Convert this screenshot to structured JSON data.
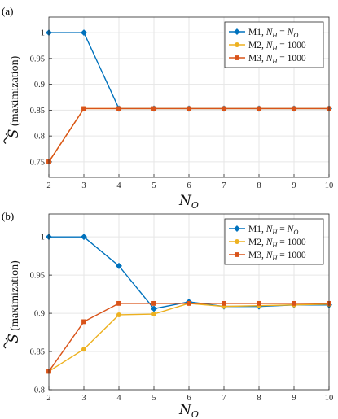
{
  "colors": {
    "M1": "#0072bd",
    "M2": "#edb120",
    "M3": "#d95319"
  },
  "chart_data": [
    {
      "type": "line",
      "panel_label": "(a)",
      "xlabel_base": "N",
      "xlabel_sub": "O",
      "ylabel_symbol": "S",
      "ylabel_text": "(maximization)",
      "x": [
        2,
        3,
        4,
        5,
        6,
        7,
        8,
        9,
        10
      ],
      "xlim": [
        2,
        10
      ],
      "ylim": [
        0.72,
        1.03
      ],
      "yticks": [
        0.75,
        0.8,
        0.85,
        0.9,
        0.95,
        1
      ],
      "ytick_labels": [
        "0.75",
        "0.8",
        "0.85",
        "0.9",
        "0.95",
        "1"
      ],
      "grid": true,
      "legend": "top-right",
      "series": [
        {
          "name": "M1, N_H = N_O",
          "legend_label": "M1, ",
          "legend_math": "N_H = N_O",
          "color_key": "M1",
          "marker": "diamond",
          "values": [
            1.0,
            1.0,
            0.853,
            0.853,
            0.853,
            0.853,
            0.853,
            0.853,
            0.853
          ]
        },
        {
          "name": "M2, N_H = 1000",
          "legend_label": "M2, ",
          "legend_math": "N_H = 1000",
          "color_key": "M2",
          "marker": "circle",
          "values": [
            0.75,
            0.853,
            0.853,
            0.853,
            0.853,
            0.853,
            0.853,
            0.853,
            0.853
          ]
        },
        {
          "name": "M3, N_H = 1000",
          "legend_label": "M3, ",
          "legend_math": "N_H = 1000",
          "color_key": "M3",
          "marker": "square",
          "values": [
            0.75,
            0.853,
            0.853,
            0.853,
            0.853,
            0.853,
            0.853,
            0.853,
            0.853
          ]
        }
      ]
    },
    {
      "type": "line",
      "panel_label": "(b)",
      "xlabel_base": "N",
      "xlabel_sub": "O",
      "ylabel_symbol": "S",
      "ylabel_text": "(maximization)",
      "x": [
        2,
        3,
        4,
        5,
        6,
        7,
        8,
        9,
        10
      ],
      "xlim": [
        2,
        10
      ],
      "ylim": [
        0.8,
        1.03
      ],
      "yticks": [
        0.8,
        0.85,
        0.9,
        0.95,
        1
      ],
      "ytick_labels": [
        "0.8",
        "0.85",
        "0.9",
        "0.95",
        "1"
      ],
      "grid": true,
      "legend": "top-right",
      "series": [
        {
          "name": "M1, N_H = N_O",
          "legend_label": "M1, ",
          "legend_math": "N_H = N_O",
          "color_key": "M1",
          "marker": "diamond",
          "values": [
            1.0,
            1.0,
            0.962,
            0.906,
            0.915,
            0.909,
            0.909,
            0.911,
            0.911
          ]
        },
        {
          "name": "M2, N_H = 1000",
          "legend_label": "M2, ",
          "legend_math": "N_H = 1000",
          "color_key": "M2",
          "marker": "circle",
          "values": [
            0.824,
            0.853,
            0.898,
            0.899,
            0.913,
            0.909,
            0.91,
            0.911,
            0.912
          ]
        },
        {
          "name": "M3, N_H = 1000",
          "legend_label": "M3, ",
          "legend_math": "N_H = 1000",
          "color_key": "M3",
          "marker": "square",
          "values": [
            0.824,
            0.889,
            0.913,
            0.913,
            0.913,
            0.913,
            0.913,
            0.913,
            0.913
          ]
        }
      ]
    }
  ]
}
